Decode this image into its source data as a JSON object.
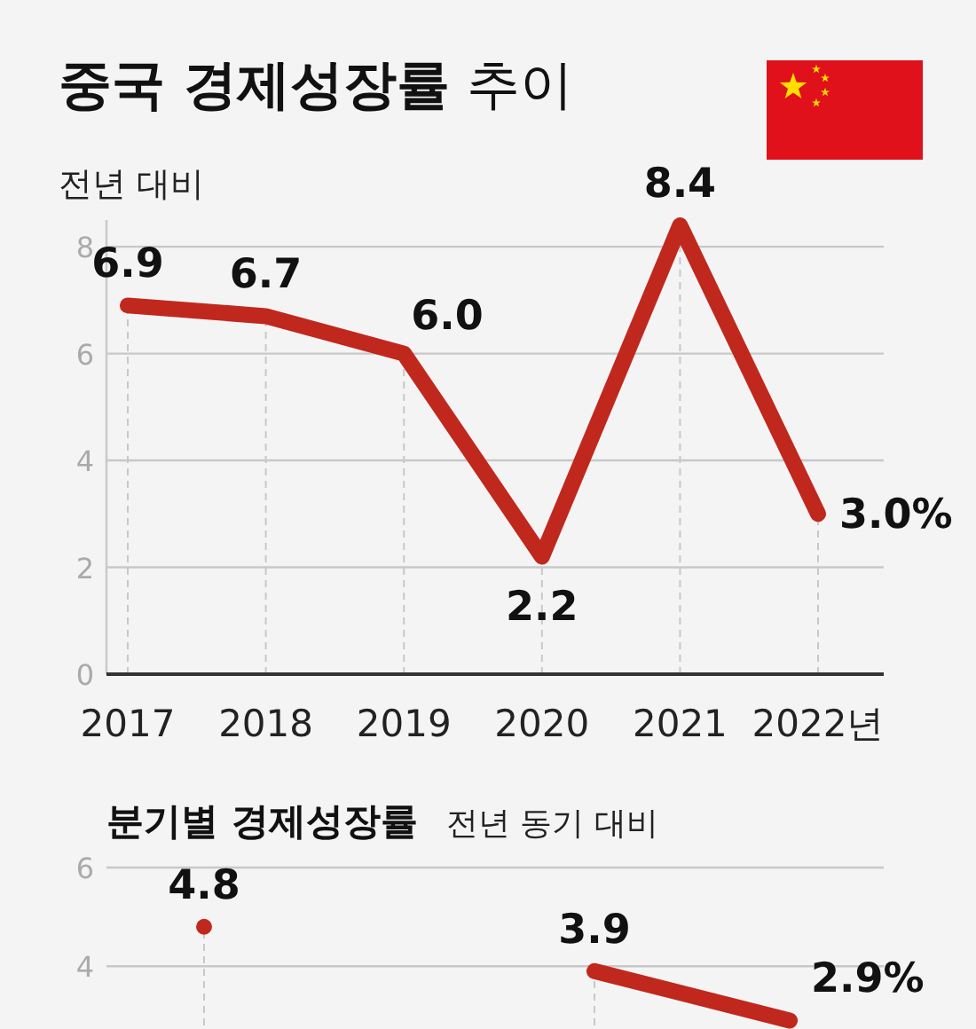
{
  "chart_data": [
    {
      "type": "line",
      "title": "**중국 경제성장률** 추이",
      "subtitle": "전년 대비",
      "categories": [
        "2017",
        "2018",
        "2019",
        "2020",
        "2021",
        "2022년"
      ],
      "series": [
        {
          "color": "#c0281e",
          "values": [
            6.9,
            6.7,
            6.0,
            2.2,
            8.4,
            3.0
          ],
          "value_labels": [
            "6.9",
            "6.7",
            "6.0",
            "2.2",
            "8.4",
            "3.0%"
          ]
        }
      ],
      "ylim": [
        0,
        8.5
      ],
      "yticks": [
        0,
        2,
        4,
        6,
        8
      ],
      "grid": true,
      "line_style": "solid"
    },
    {
      "type": "line",
      "title": "분기별 경제성장률",
      "subtitle": "전년 동기 대비",
      "categories": [
        null,
        null,
        null,
        null
      ],
      "series": [
        {
          "color": "#c0281e",
          "values": [
            4.8,
            null,
            3.9,
            2.9
          ],
          "value_labels": [
            "4.8",
            null,
            "3.9",
            "2.9%"
          ]
        }
      ],
      "ylim": [
        2.8,
        6
      ],
      "yticks": [
        4,
        6
      ],
      "grid": true,
      "line_style": "solid"
    }
  ]
}
